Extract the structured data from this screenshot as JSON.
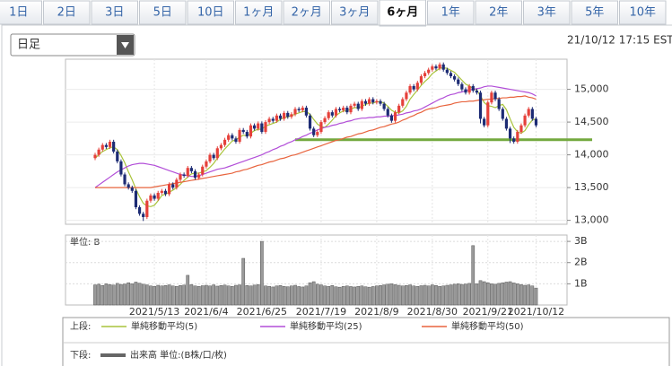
{
  "tabs": [
    "1日",
    "2日",
    "3日",
    "5日",
    "10日",
    "1ヶ月",
    "2ヶ月",
    "3ヶ月",
    "6ヶ月",
    "1年",
    "2年",
    "3年",
    "5年",
    "10年"
  ],
  "active_tab": 8,
  "interval_select": "日足",
  "timestamp": "21/10/12 17:15 EST",
  "chart_data": [
    {
      "type": "candlestick",
      "up_color": "#e5403a",
      "down_color": "#1c2b74",
      "open": [
        13950,
        14000,
        14080,
        14150,
        14120,
        14200,
        14050,
        13900,
        13700,
        13550,
        13500,
        13450,
        13200,
        13100,
        13050,
        13300,
        13380,
        13330,
        13420,
        13450,
        13400,
        13550,
        13500,
        13620,
        13700,
        13680,
        13800,
        13750,
        13650,
        13700,
        13820,
        13900,
        14000,
        13950,
        14100,
        14150,
        14230,
        14300,
        14250,
        14200,
        14380,
        14350,
        14280,
        14450,
        14400,
        14480,
        14350,
        14500,
        14550,
        14520,
        14600,
        14550,
        14640,
        14580,
        14620,
        14700,
        14680,
        14720,
        14600,
        14400,
        14300,
        14350,
        14500,
        14560,
        14650,
        14600,
        14700,
        14680,
        14720,
        14650,
        14750,
        14780,
        14700,
        14820,
        14780,
        14850,
        14800,
        14820,
        14780,
        14700,
        14600,
        14520,
        14650,
        14750,
        14850,
        14950,
        15050,
        15000,
        15100,
        15200,
        15250,
        15300,
        15350,
        15320,
        15380,
        15300,
        15250,
        15200,
        15150,
        15080,
        15000,
        14950,
        15050,
        14980,
        14950,
        14550,
        14450,
        14800,
        14950,
        14850,
        14700,
        14550,
        14400,
        14250,
        14200,
        14350,
        14450,
        14600,
        14700,
        14550
      ],
      "high": [
        14030,
        14110,
        14180,
        14180,
        14230,
        14230,
        14080,
        13930,
        13730,
        13580,
        13530,
        13480,
        13230,
        13130,
        13330,
        13410,
        13410,
        13450,
        13480,
        13480,
        13580,
        13580,
        13650,
        13730,
        13730,
        13830,
        13830,
        13780,
        13730,
        13850,
        13930,
        14030,
        14030,
        14130,
        14180,
        14260,
        14330,
        14330,
        14280,
        14410,
        14410,
        14380,
        14480,
        14480,
        14510,
        14510,
        14530,
        14580,
        14580,
        14630,
        14630,
        14670,
        14670,
        14650,
        14730,
        14730,
        14750,
        14750,
        14630,
        14430,
        14380,
        14530,
        14590,
        14680,
        14680,
        14730,
        14730,
        14750,
        14750,
        14780,
        14810,
        14810,
        14850,
        14850,
        14880,
        14880,
        14850,
        14850,
        14810,
        14730,
        14630,
        14680,
        14780,
        14880,
        14980,
        15080,
        15080,
        15130,
        15230,
        15280,
        15330,
        15380,
        15380,
        15410,
        15410,
        15330,
        15280,
        15230,
        15180,
        15110,
        15030,
        15080,
        15080,
        15010,
        14980,
        14580,
        14830,
        14980,
        14980,
        14880,
        14730,
        14580,
        14430,
        14280,
        14380,
        14480,
        14630,
        14730,
        14730,
        14580
      ],
      "low": [
        13920,
        13970,
        14050,
        14090,
        14090,
        14020,
        13870,
        13670,
        13520,
        13470,
        13420,
        13170,
        13070,
        12990,
        13020,
        13270,
        13300,
        13300,
        13390,
        13370,
        13370,
        13470,
        13470,
        13590,
        13650,
        13650,
        13720,
        13620,
        13620,
        13670,
        13790,
        13870,
        13920,
        13920,
        14070,
        14120,
        14200,
        14220,
        14170,
        14170,
        14320,
        14250,
        14250,
        14370,
        14370,
        14320,
        14320,
        14470,
        14490,
        14490,
        14520,
        14520,
        14550,
        14550,
        14590,
        14650,
        14650,
        14570,
        14370,
        14270,
        14270,
        14320,
        14470,
        14530,
        14570,
        14570,
        14650,
        14650,
        14620,
        14620,
        14720,
        14670,
        14670,
        14750,
        14750,
        14770,
        14770,
        14750,
        14670,
        14570,
        14490,
        14490,
        14620,
        14720,
        14820,
        14920,
        14970,
        14970,
        15070,
        15170,
        15220,
        15270,
        15290,
        15290,
        15270,
        15220,
        15170,
        15120,
        15050,
        14970,
        14920,
        14920,
        14950,
        14920,
        14480,
        14420,
        14420,
        14770,
        14820,
        14670,
        14520,
        14370,
        14180,
        14170,
        14170,
        14320,
        14420,
        14570,
        14520,
        14420
      ],
      "close": [
        14000,
        14080,
        14150,
        14120,
        14200,
        14050,
        13900,
        13700,
        13550,
        13500,
        13450,
        13200,
        13100,
        13050,
        13300,
        13380,
        13330,
        13420,
        13450,
        13400,
        13550,
        13500,
        13620,
        13700,
        13680,
        13800,
        13750,
        13650,
        13700,
        13820,
        13900,
        14000,
        13950,
        14100,
        14150,
        14230,
        14300,
        14250,
        14200,
        14380,
        14350,
        14280,
        14450,
        14400,
        14480,
        14350,
        14500,
        14550,
        14520,
        14600,
        14550,
        14640,
        14580,
        14620,
        14700,
        14680,
        14720,
        14600,
        14400,
        14300,
        14350,
        14500,
        14560,
        14650,
        14600,
        14700,
        14680,
        14720,
        14650,
        14750,
        14780,
        14700,
        14820,
        14780,
        14850,
        14800,
        14820,
        14780,
        14700,
        14600,
        14520,
        14650,
        14750,
        14850,
        14950,
        15050,
        15000,
        15100,
        15200,
        15250,
        15300,
        15350,
        15320,
        15380,
        15300,
        15250,
        15200,
        15150,
        15080,
        15000,
        14950,
        15050,
        14980,
        14950,
        14550,
        14450,
        14800,
        14950,
        14850,
        14700,
        14550,
        14400,
        14250,
        14200,
        14350,
        14450,
        14600,
        14700,
        14550,
        14450
      ],
      "series": [
        {
          "name": "単純移動平均(5)",
          "color": "#a9c43b",
          "values": [
            13950,
            14000,
            14050,
            14080,
            14110,
            14120,
            14080,
            13990,
            13880,
            13740,
            13620,
            13480,
            13360,
            13260,
            13220,
            13210,
            13230,
            13300,
            13380,
            13400,
            13430,
            13460,
            13500,
            13550,
            13610,
            13660,
            13710,
            13720,
            13720,
            13740,
            13760,
            13810,
            13870,
            13950,
            14020,
            14090,
            14150,
            14210,
            14230,
            14270,
            14300,
            14290,
            14330,
            14370,
            14390,
            14390,
            14440,
            14460,
            14480,
            14500,
            14540,
            14570,
            14580,
            14600,
            14620,
            14640,
            14660,
            14660,
            14620,
            14540,
            14470,
            14430,
            14420,
            14470,
            14530,
            14600,
            14640,
            14670,
            14670,
            14700,
            14720,
            14720,
            14740,
            14770,
            14790,
            14790,
            14810,
            14810,
            14790,
            14740,
            14680,
            14650,
            14640,
            14670,
            14740,
            14850,
            14920,
            14990,
            15060,
            15120,
            15170,
            15240,
            15280,
            15320,
            15330,
            15320,
            15290,
            15260,
            15200,
            15140,
            15080,
            15050,
            15010,
            14990,
            14900,
            14800,
            14750,
            14740,
            14720,
            14750,
            14770,
            14690,
            14550,
            14420,
            14350,
            14330,
            14370,
            14460,
            14530,
            14550
          ]
        },
        {
          "name": "単純移動平均(25)",
          "color": "#b24ed8",
          "values": [
            13500,
            13540,
            13580,
            13620,
            13660,
            13700,
            13740,
            13770,
            13800,
            13830,
            13850,
            13860,
            13870,
            13870,
            13860,
            13850,
            13840,
            13820,
            13800,
            13780,
            13760,
            13740,
            13720,
            13700,
            13690,
            13680,
            13670,
            13670,
            13680,
            13700,
            13720,
            13740,
            13760,
            13780,
            13790,
            13800,
            13820,
            13840,
            13860,
            13880,
            13900,
            13920,
            13940,
            13960,
            13980,
            14000,
            14030,
            14050,
            14080,
            14100,
            14130,
            14150,
            14180,
            14200,
            14230,
            14250,
            14280,
            14300,
            14330,
            14350,
            14380,
            14400,
            14420,
            14430,
            14450,
            14460,
            14480,
            14490,
            14510,
            14520,
            14540,
            14550,
            14560,
            14560,
            14570,
            14570,
            14580,
            14580,
            14590,
            14590,
            14600,
            14600,
            14610,
            14620,
            14640,
            14650,
            14670,
            14680,
            14700,
            14730,
            14760,
            14790,
            14820,
            14850,
            14870,
            14900,
            14920,
            14930,
            14950,
            14960,
            14980,
            14990,
            15000,
            15010,
            15020,
            15040,
            15050,
            15050,
            15040,
            15030,
            15020,
            15010,
            15000,
            14990,
            14980,
            14970,
            14960,
            14950,
            14930,
            14900
          ]
        },
        {
          "name": "単純移動平均(50)",
          "color": "#e8643e",
          "values": [
            13500,
            13500,
            13500,
            13500,
            13500,
            13500,
            13500,
            13500,
            13500,
            13500,
            13500,
            13500,
            13500,
            13500,
            13500,
            13500,
            13510,
            13520,
            13530,
            13540,
            13550,
            13560,
            13570,
            13580,
            13590,
            13600,
            13610,
            13620,
            13630,
            13640,
            13650,
            13660,
            13670,
            13680,
            13690,
            13700,
            13710,
            13720,
            13740,
            13750,
            13770,
            13780,
            13800,
            13820,
            13840,
            13850,
            13870,
            13890,
            13900,
            13920,
            13940,
            13950,
            13970,
            13990,
            14000,
            14020,
            14040,
            14060,
            14080,
            14100,
            14120,
            14140,
            14160,
            14180,
            14200,
            14220,
            14230,
            14250,
            14270,
            14280,
            14300,
            14320,
            14330,
            14350,
            14370,
            14380,
            14400,
            14420,
            14430,
            14450,
            14470,
            14480,
            14500,
            14530,
            14550,
            14580,
            14600,
            14630,
            14650,
            14680,
            14700,
            14710,
            14720,
            14740,
            14750,
            14760,
            14770,
            14790,
            14800,
            14810,
            14810,
            14820,
            14820,
            14830,
            14840,
            14840,
            14850,
            14850,
            14860,
            14860,
            14870,
            14870,
            14880,
            14880,
            14890,
            14890,
            14900,
            14880,
            14870,
            14850
          ]
        }
      ],
      "ylim": [
        12940,
        15460
      ],
      "yticks": [
        {
          "value": 13000,
          "label": "13,000"
        },
        {
          "value": 13500,
          "label": "13,500"
        },
        {
          "value": 14000,
          "label": "14,000"
        },
        {
          "value": 14500,
          "label": "14,500"
        },
        {
          "value": 15000,
          "label": "15,000"
        }
      ],
      "grid": true,
      "reference_line": {
        "value": 14230,
        "color": "#73a93e"
      },
      "legend_prefix": "上段:"
    },
    {
      "type": "bar",
      "unit_label": "単位: B",
      "categories": [
        null,
        null,
        null,
        null,
        null,
        null,
        null,
        null,
        null,
        null,
        null,
        null,
        null,
        null,
        null,
        null,
        "2021/5/13",
        null,
        null,
        null,
        null,
        null,
        null,
        null,
        null,
        null,
        null,
        null,
        null,
        null,
        "2021/6/4",
        null,
        null,
        null,
        null,
        null,
        null,
        null,
        null,
        null,
        null,
        null,
        null,
        null,
        null,
        "2021/6/25",
        null,
        null,
        null,
        null,
        null,
        null,
        null,
        null,
        null,
        null,
        null,
        null,
        null,
        null,
        null,
        "2021/7/19",
        null,
        null,
        null,
        null,
        null,
        null,
        null,
        null,
        null,
        null,
        null,
        null,
        null,
        null,
        "2021/8/9",
        null,
        null,
        null,
        null,
        null,
        null,
        null,
        null,
        null,
        null,
        null,
        null,
        null,
        null,
        "2021/8/30",
        null,
        null,
        null,
        null,
        null,
        null,
        null,
        null,
        null,
        null,
        null,
        null,
        null,
        null,
        "2021/9/21",
        null,
        null,
        null,
        null,
        null,
        null,
        null,
        null,
        null,
        null,
        null,
        null,
        "2021/10/12"
      ],
      "series": [
        {
          "name": "出来高 単位:(B株/口/枚)",
          "color": "#9a9a9a",
          "values": [
            0.95,
            0.98,
            0.92,
            1.0,
            0.96,
            0.94,
            1.02,
            0.97,
            0.99,
            1.05,
            1.0,
            1.08,
            1.03,
            0.98,
            0.95,
            0.9,
            0.88,
            0.93,
            0.9,
            0.92,
            0.95,
            0.9,
            0.88,
            0.92,
            0.94,
            1.4,
            0.96,
            0.9,
            0.88,
            0.91,
            0.93,
            0.9,
            0.95,
            0.89,
            0.92,
            0.94,
            0.9,
            0.88,
            0.93,
            0.95,
            2.2,
            0.92,
            0.9,
            0.94,
            0.96,
            3.0,
            0.9,
            0.88,
            0.85,
            0.9,
            0.92,
            0.88,
            0.86,
            0.9,
            0.93,
            0.87,
            0.85,
            0.9,
            1.05,
            1.1,
            0.98,
            0.95,
            0.9,
            0.88,
            0.92,
            0.86,
            0.84,
            0.88,
            0.9,
            0.87,
            0.85,
            0.88,
            0.9,
            0.86,
            0.84,
            0.87,
            0.9,
            0.92,
            0.95,
            0.98,
            1.0,
            0.96,
            0.93,
            0.9,
            0.92,
            0.95,
            0.9,
            0.88,
            0.91,
            0.93,
            0.9,
            0.95,
            0.92,
            0.88,
            0.9,
            0.93,
            0.95,
            0.98,
            1.0,
            0.97,
            0.99,
            1.02,
            2.8,
            1.0,
            1.15,
            1.1,
            1.05,
            1.0,
            0.98,
            1.02,
            1.05,
            1.08,
            1.1,
            1.04,
            1.0,
            0.96,
            0.93,
            0.95,
            0.9,
            0.8
          ]
        }
      ],
      "ylim": [
        0,
        3.3
      ],
      "yticks": [
        {
          "value": 1,
          "label": "1B"
        },
        {
          "value": 2,
          "label": "2B"
        },
        {
          "value": 3,
          "label": "3B"
        }
      ],
      "grid": true,
      "legend_prefix": "下段:"
    }
  ]
}
